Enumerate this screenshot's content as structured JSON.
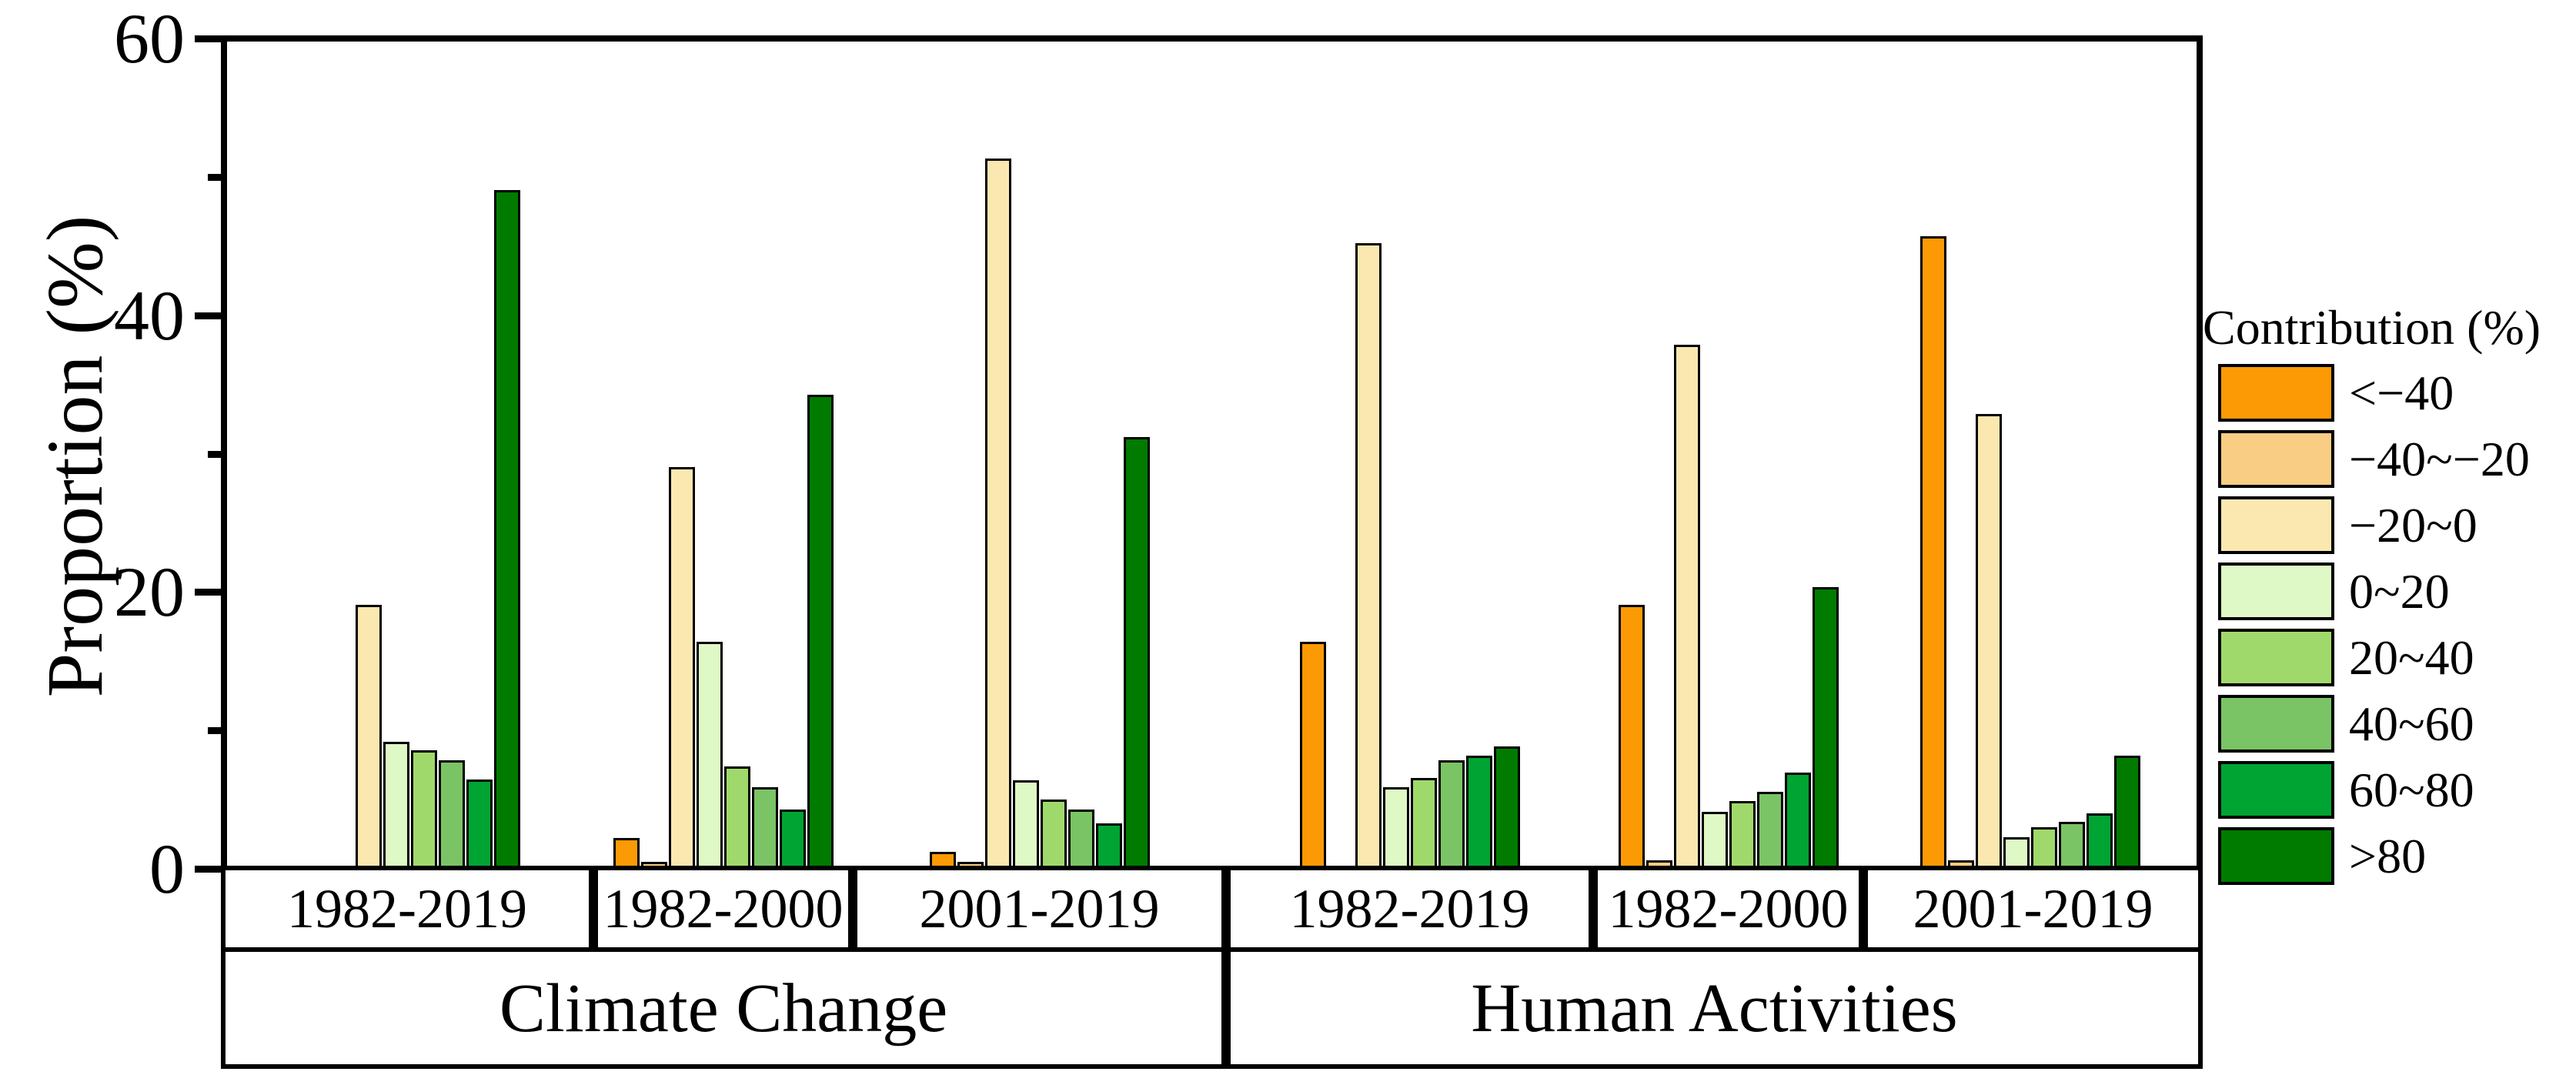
{
  "chart_data": {
    "type": "bar",
    "title": "",
    "ylabel": "Proportion (%)",
    "xlabel": "",
    "ylim": [
      0,
      60
    ],
    "yticks_major": [
      0,
      20,
      40,
      60
    ],
    "yticks_minor": [
      10,
      30,
      50
    ],
    "grid": false,
    "legend_position": "right",
    "legend": {
      "title": "Contribution (%)",
      "entries": [
        {
          "label": "<−40",
          "color": "#FC9A05"
        },
        {
          "label": "−40~−20",
          "color": "#FACD84"
        },
        {
          "label": "−20~0",
          "color": "#FBE8B0"
        },
        {
          "label": "0~20",
          "color": "#DFF9C6"
        },
        {
          "label": "20~40",
          "color": "#A0D96B"
        },
        {
          "label": "40~60",
          "color": "#7BC465"
        },
        {
          "label": "60~80",
          "color": "#00A432"
        },
        {
          "label": ">80",
          "color": "#007B00"
        }
      ]
    },
    "sections": [
      {
        "label": "Climate Change",
        "periods": [
          "1982-2019",
          "1982-2000",
          "2001-2019"
        ]
      },
      {
        "label": "Human Activities",
        "periods": [
          "1982-2019",
          "1982-2000",
          "2001-2019"
        ]
      }
    ],
    "groups": [
      {
        "section": "Climate Change",
        "period": "1982-2019",
        "values": [
          0,
          0,
          19.0,
          9.0,
          8.4,
          7.7,
          6.3,
          49.2
        ]
      },
      {
        "section": "Climate Change",
        "period": "1982-2000",
        "values": [
          2.0,
          0.3,
          29.0,
          16.3,
          7.2,
          5.7,
          4.1,
          34.3
        ]
      },
      {
        "section": "Climate Change",
        "period": "2001-2019",
        "values": [
          1.0,
          0.3,
          51.5,
          6.2,
          4.8,
          4.1,
          3.1,
          31.2
        ]
      },
      {
        "section": "Human Activities",
        "period": "1982-2019",
        "values": [
          16.3,
          0,
          45.3,
          5.7,
          6.4,
          7.7,
          8.0,
          8.7
        ]
      },
      {
        "section": "Human Activities",
        "period": "1982-2000",
        "values": [
          19.0,
          0.4,
          37.9,
          3.9,
          4.7,
          5.4,
          6.8,
          20.3
        ]
      },
      {
        "section": "Human Activities",
        "period": "2001-2019",
        "values": [
          45.8,
          0.4,
          32.9,
          2.1,
          2.8,
          3.2,
          3.8,
          8.0
        ]
      }
    ]
  }
}
